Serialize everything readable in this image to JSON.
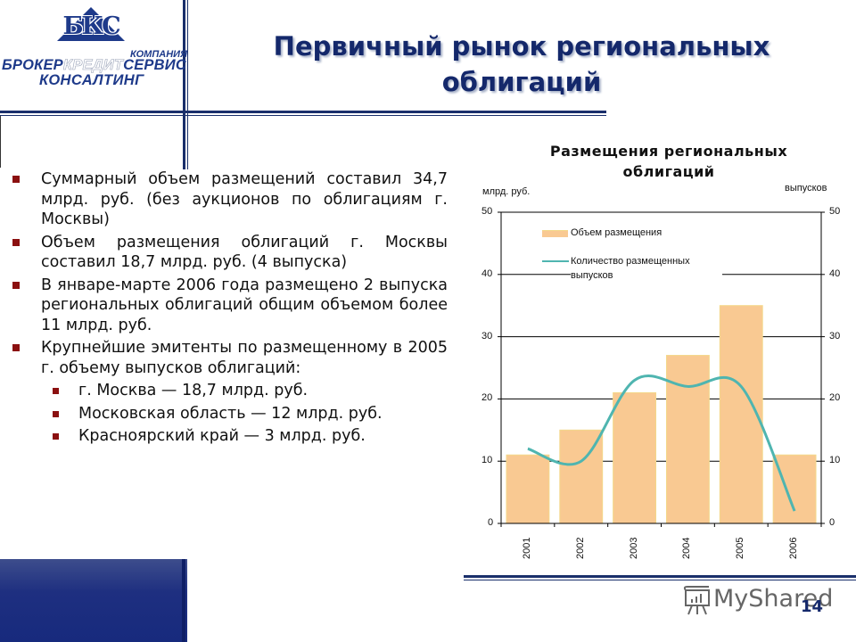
{
  "logo": {
    "monogram": "БКС",
    "company_label": "КОМПАНИЯ",
    "line1_part1": "БРОКЕР",
    "line1_part2": "КРЕДИТ",
    "line1_part3": "СЕРВИС",
    "line2": "КОНСАЛТИНГ"
  },
  "slide": {
    "title_line1": "Первичный рынок региональных",
    "title_line2": "облигаций",
    "page_number": "14",
    "watermark": "MyShared"
  },
  "bullets": [
    {
      "text": "Суммарный объем размещений составил 34,7 млрд. руб. (без аукционов по облигациям г. Москвы)"
    },
    {
      "text": "Объем размещения облигаций г. Москвы составил 18,7 млрд. руб. (4 выпуска)"
    },
    {
      "text": "В январе-марте 2006 года размещено 2 выпуска региональных облигаций общим объемом более 11 млрд. руб."
    },
    {
      "text": "Крупнейшие эмитенты по размещенному в 2005 г. объему выпусков облигаций:",
      "sub": [
        {
          "text": "г. Москва — 18,7 млрд. руб."
        },
        {
          "text": "Московская область — 12 млрд. руб."
        },
        {
          "text": "Красноярский край — 3 млрд. руб."
        }
      ]
    }
  ],
  "colors": {
    "brand_navy": "#1a2f6b",
    "bullet_red": "#8b1010",
    "bar_fill": "#f9c992",
    "bar_edge": "#f3d88a",
    "line": "#4fb5b0"
  },
  "chart_data": {
    "type": "bar",
    "title": "Размещения региональных облигаций",
    "title_line1": "Размещения региональных",
    "title_line2": "облигаций",
    "ylabel": "млрд. руб.",
    "y2label": "выпусков",
    "categories": [
      "2001",
      "2002",
      "2003",
      "2004",
      "2005",
      "2006"
    ],
    "ylim": [
      0,
      50
    ],
    "y2lim": [
      0,
      50
    ],
    "yticks": [
      0,
      10,
      20,
      30,
      40,
      50
    ],
    "grid": true,
    "legend_position": "upper-left inside",
    "series": [
      {
        "name": "Объем размещения",
        "type": "bar",
        "axis": "left",
        "values": [
          11,
          15,
          21,
          27,
          35,
          11
        ]
      },
      {
        "name": "Количество размещенных выпусков",
        "type": "line",
        "axis": "right",
        "smooth": true,
        "values": [
          12,
          10,
          23,
          22,
          22,
          2
        ]
      }
    ],
    "legend": [
      "Объем размещения",
      "Количество размещенных выпусков"
    ]
  }
}
